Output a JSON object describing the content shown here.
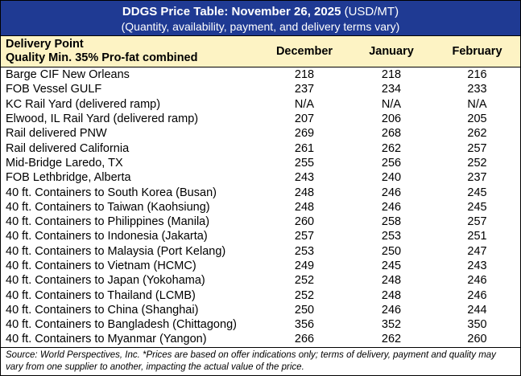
{
  "header": {
    "title_bold": "DDGS Price Table: November 26, 2025",
    "title_units": "(USD/MT)",
    "subtitle": "(Quantity, availability, payment, and delivery terms vary)"
  },
  "columns": {
    "point_line1": "Delivery Point",
    "point_line2": "Quality Min. 35% Pro-fat combined",
    "months": [
      "December",
      "January",
      "February"
    ]
  },
  "rows": [
    {
      "point": "Barge CIF New Orleans",
      "values": [
        "218",
        "218",
        "216"
      ]
    },
    {
      "point": "FOB Vessel GULF",
      "values": [
        "237",
        "234",
        "233"
      ]
    },
    {
      "point": "KC Rail Yard (delivered ramp)",
      "values": [
        "N/A",
        "N/A",
        "N/A"
      ]
    },
    {
      "point": "Elwood, IL Rail Yard (delivered ramp)",
      "values": [
        "207",
        "206",
        "205"
      ]
    },
    {
      "point": "Rail delivered PNW",
      "values": [
        "269",
        "268",
        "262"
      ]
    },
    {
      "point": "Rail delivered California",
      "values": [
        "261",
        "262",
        "257"
      ]
    },
    {
      "point": "Mid-Bridge Laredo, TX",
      "values": [
        "255",
        "256",
        "252"
      ]
    },
    {
      "point": "FOB Lethbridge, Alberta",
      "values": [
        "243",
        "240",
        "237"
      ]
    },
    {
      "point": "40 ft. Containers to South Korea (Busan)",
      "values": [
        "248",
        "246",
        "245"
      ]
    },
    {
      "point": "40 ft. Containers to Taiwan (Kaohsiung)",
      "values": [
        "248",
        "246",
        "245"
      ]
    },
    {
      "point": "40 ft. Containers to Philippines (Manila)",
      "values": [
        "260",
        "258",
        "257"
      ]
    },
    {
      "point": "40 ft. Containers to Indonesia (Jakarta)",
      "values": [
        "257",
        "253",
        "251"
      ]
    },
    {
      "point": "40 ft. Containers to Malaysia (Port Kelang)",
      "values": [
        "253",
        "250",
        "247"
      ]
    },
    {
      "point": "40 ft. Containers to Vietnam (HCMC)",
      "values": [
        "249",
        "245",
        "243"
      ]
    },
    {
      "point": "40 ft. Containers to Japan (Yokohama)",
      "values": [
        "252",
        "248",
        "246"
      ]
    },
    {
      "point": "40 ft. Containers to Thailand (LCMB)",
      "values": [
        "252",
        "248",
        "246"
      ]
    },
    {
      "point": "40 ft. Containers to China (Shanghai)",
      "values": [
        "250",
        "246",
        "244"
      ]
    },
    {
      "point": "40 ft. Containers to Bangladesh (Chittagong)",
      "values": [
        "356",
        "352",
        "350"
      ]
    },
    {
      "point": "40 ft. Containers to Myanmar (Yangon)",
      "values": [
        "266",
        "262",
        "260"
      ]
    }
  ],
  "footnote": "Source: World Perspectives, Inc. *Prices are based on offer indications only; terms of delivery, payment and quality may vary from one supplier to another, impacting the actual value of the price.",
  "colors": {
    "title_bg": "#1f3a93",
    "header_bg": "#fdf3c4"
  }
}
